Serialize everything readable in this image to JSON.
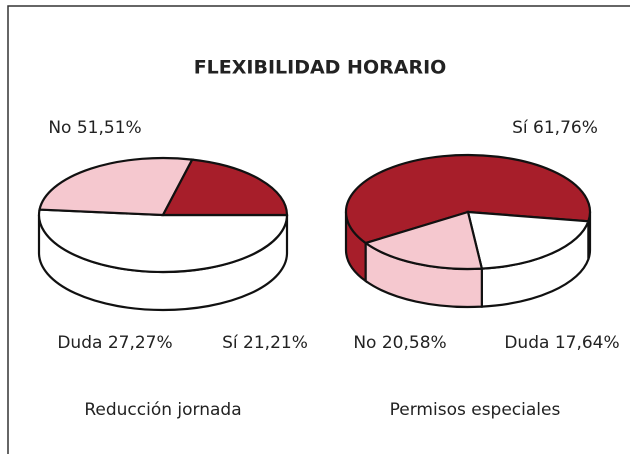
{
  "title": "FLEXIBILIDAD HORARIO",
  "chart_data": [
    {
      "type": "pie",
      "title": "Reducción jornada",
      "categories": [
        "No",
        "Duda",
        "Sí"
      ],
      "values": [
        51.51,
        27.27,
        21.21
      ],
      "value_labels": [
        "51,51%",
        "27,27%",
        "21,21%"
      ],
      "colors": [
        "#ffffff",
        "#f5c8cf",
        "#a71e2a"
      ]
    },
    {
      "type": "pie",
      "title": "Permisos especiales",
      "categories": [
        "Sí",
        "No",
        "Duda"
      ],
      "values": [
        61.76,
        20.58,
        17.64
      ],
      "value_labels": [
        "61,76%",
        "20,58%",
        "17,64%"
      ],
      "colors": [
        "#a71e2a",
        "#ffffff",
        "#f5c8cf"
      ]
    }
  ]
}
